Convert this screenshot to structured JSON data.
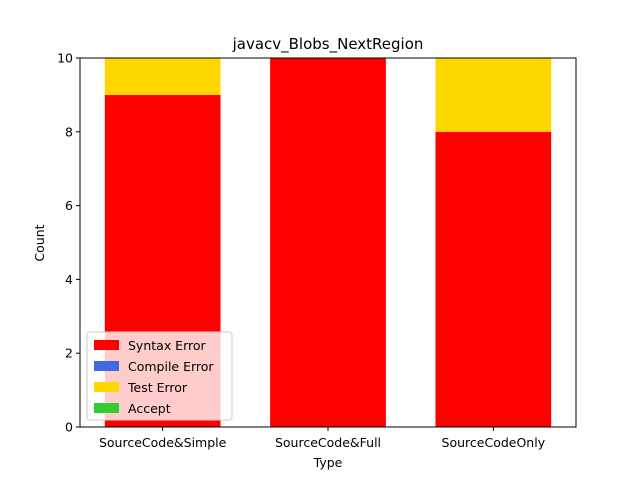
{
  "chart_data": {
    "type": "bar",
    "stacked": true,
    "title": "javacv_Blobs_NextRegion",
    "xlabel": "Type",
    "ylabel": "Count",
    "ylim": [
      0,
      10
    ],
    "yticks": [
      0,
      2,
      4,
      6,
      8,
      10
    ],
    "categories": [
      "SourceCode&Simple",
      "SourceCode&Full",
      "SourceCodeOnly"
    ],
    "series": [
      {
        "name": "Syntax Error",
        "color": "#ff0000",
        "values": [
          9,
          10,
          8
        ]
      },
      {
        "name": "Compile Error",
        "color": "#4169e1",
        "values": [
          0,
          0,
          0
        ]
      },
      {
        "name": "Test Error",
        "color": "#ffd700",
        "values": [
          1,
          0,
          2
        ]
      },
      {
        "name": "Accept",
        "color": "#32cd32",
        "values": [
          0,
          0,
          0
        ]
      }
    ],
    "legend_position": "lower-left",
    "grid": false
  }
}
